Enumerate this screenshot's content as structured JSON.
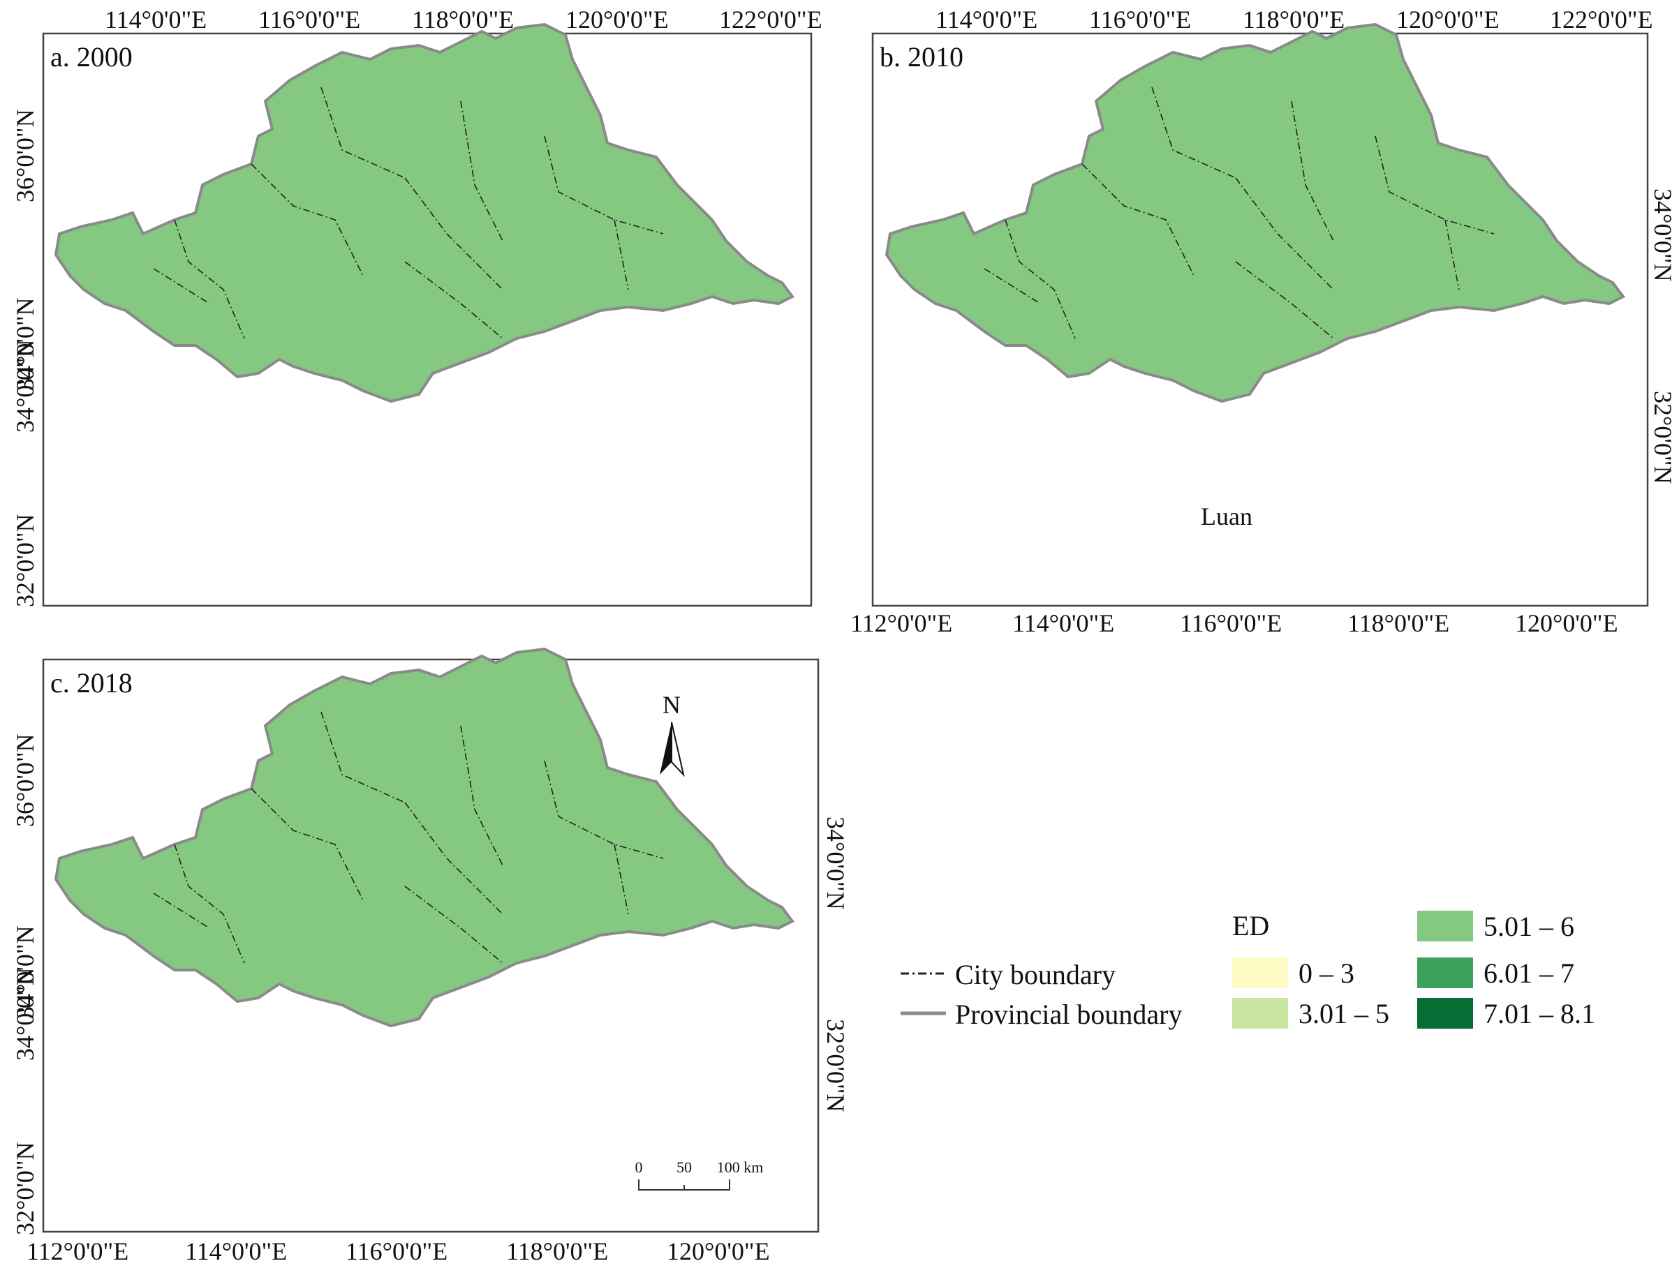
{
  "panels": [
    {
      "title": "a. 2000",
      "top_ticks": [
        "114°0'0\"E",
        "116°0'0\"E",
        "118°0'0\"E",
        "120°0'0\"E",
        "122°0'0\"E"
      ],
      "left_ticks": [
        "36°0'0\"N",
        "34°0'0\"N",
        "34°0'0\"N",
        "32°0'0\"N"
      ]
    },
    {
      "title": "b. 2010",
      "top_ticks": [
        "114°0'0\"E",
        "116°0'0\"E",
        "118°0'0\"E",
        "120°0'0\"E",
        "122°0'0\"E"
      ],
      "bottom_ticks": [
        "112°0'0\"E",
        "114°0'0\"E",
        "116°0'0\"E",
        "118°0'0\"E",
        "120°0'0\"E"
      ],
      "right_ticks": [
        "34°0'0\"N",
        "32°0'0\"N"
      ],
      "place_label": "Luan"
    },
    {
      "title": "c. 2018",
      "bottom_ticks": [
        "112°0'0\"E",
        "114°0'0\"E",
        "116°0'0\"E",
        "118°0'0\"E",
        "120°0'0\"E"
      ],
      "left_ticks": [
        "36°0'0\"N",
        "34°0'0\"N",
        "34°0'0\"N",
        "32°0'0\"N"
      ],
      "right_ticks": [
        "34°0'0\"N",
        "32°0'0\"N"
      ]
    }
  ],
  "north_arrow": "N",
  "scale_bar": {
    "labels": [
      "0",
      "50",
      "100 km"
    ]
  },
  "legend": {
    "title": "ED",
    "lines": [
      {
        "label": "City boundary",
        "style": "dash-dot"
      },
      {
        "label": "Provincial boundary",
        "style": "solid-gray"
      }
    ],
    "classes": [
      {
        "label": "0 – 3",
        "color": "#fefbc4"
      },
      {
        "label": "3.01 – 5",
        "color": "#c7e4a0"
      },
      {
        "label": "5.01 – 6",
        "color": "#85c881"
      },
      {
        "label": "6.01 – 7",
        "color": "#3da25a"
      },
      {
        "label": "7.01 – 8.1",
        "color": "#066d35"
      }
    ]
  }
}
